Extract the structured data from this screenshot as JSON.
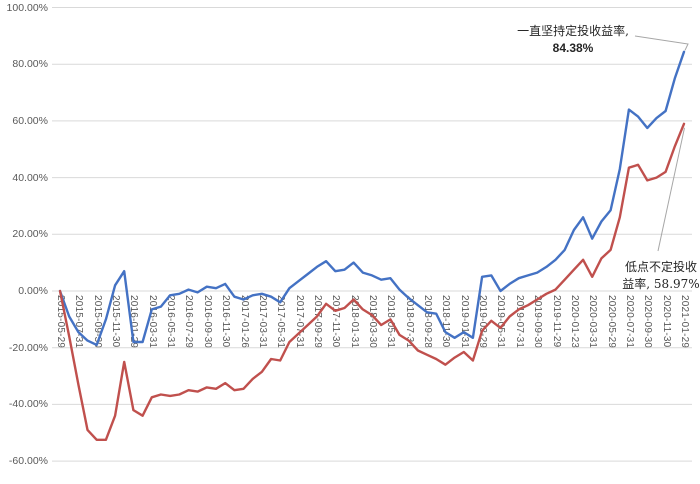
{
  "chart_data": {
    "type": "line",
    "title": "",
    "grid": "horizontal-only",
    "background": "#ffffff",
    "gridline_color": "#d9d9d9",
    "tick_label_color": "#595959",
    "ylim": [
      -60,
      100
    ],
    "y_tick_step": 20,
    "y_tick_labels": [
      "100.00%",
      "80.00%",
      "60.00%",
      "40.00%",
      "20.00%",
      "0.00%",
      "-20.00%",
      "-40.00%",
      "-60.00%"
    ],
    "y_tick_values": [
      100,
      80,
      60,
      40,
      20,
      0,
      -20,
      -40,
      -60
    ],
    "x_label_every_n_points": 2,
    "x_labels": [
      "2015-05-29",
      "2015-07-31",
      "2015-09-30",
      "2015-11-30",
      "2016-01-29",
      "2016-03-31",
      "2016-05-31",
      "2016-07-29",
      "2016-09-30",
      "2016-11-30",
      "2017-01-26",
      "2017-03-31",
      "2017-05-31",
      "2017-07-31",
      "2017-09-29",
      "2017-11-30",
      "2018-01-31",
      "2018-03-30",
      "2018-05-31",
      "2018-07-31",
      "2018-09-28",
      "2018-11-30",
      "2019-01-31",
      "2019-03-29",
      "2019-05-31",
      "2019-07-31",
      "2019-09-30",
      "2019-11-29",
      "2020-01-23",
      "2020-03-31",
      "2020-05-29",
      "2020-07-31",
      "2020-09-30",
      "2020-11-30",
      "2021-01-29"
    ],
    "series": [
      {
        "name": "一直坚持定投收益率",
        "color": "#4472c4",
        "final_value_pct": 84.38,
        "values": [
          0,
          -9,
          -14.5,
          -17.5,
          -19,
          -10,
          2,
          7,
          -18,
          -18,
          -6.5,
          -5.5,
          -1.5,
          -1,
          0.5,
          -0.5,
          1.5,
          1,
          2.5,
          -2,
          -3,
          -1.5,
          -1,
          -2,
          -4,
          1,
          3.5,
          6,
          8.5,
          10.5,
          7,
          7.5,
          10,
          6.5,
          5.5,
          4,
          4.5,
          0.5,
          -2.5,
          -5,
          -7.5,
          -8,
          -14.5,
          -16.5,
          -14.5,
          -16.5,
          5,
          5.5,
          0,
          2.5,
          4.5,
          5.5,
          6.5,
          8.5,
          11,
          14.5,
          21.5,
          26,
          18.5,
          24.5,
          28.5,
          43,
          64,
          61.5,
          57.5,
          61,
          63.5,
          75,
          84.38
        ]
      },
      {
        "name": "低点不定投收益率",
        "color": "#c0504d",
        "final_value_pct": 58.97,
        "values": [
          0,
          -16,
          -33,
          -49,
          -52.5,
          -52.5,
          -44,
          -25,
          -42,
          -44,
          -37.5,
          -36.5,
          -37,
          -36.5,
          -35,
          -35.5,
          -34,
          -34.5,
          -32.5,
          -35,
          -34.5,
          -31,
          -28.5,
          -24,
          -24.5,
          -18,
          -15,
          -12,
          -9,
          -4.5,
          -7,
          -6,
          -3,
          -6.5,
          -8.5,
          -12,
          -10,
          -15.5,
          -17.5,
          -21,
          -22.5,
          -24,
          -26,
          -23.5,
          -21.5,
          -24.5,
          -14,
          -10.5,
          -13,
          -9,
          -6.5,
          -5,
          -3,
          -1,
          0.5,
          4,
          7.5,
          11,
          5,
          11.5,
          14.5,
          26,
          43.5,
          44.5,
          39,
          40,
          42,
          51,
          58.97
        ]
      }
    ],
    "annotations": [
      {
        "series": 0,
        "lines": [
          "一直坚持定投收益率,",
          "84.38%"
        ],
        "leader_color": "#a6a6a6"
      },
      {
        "series": 1,
        "lines": [
          "低点不定投收",
          "益率, 58.97%"
        ],
        "leader_color": "#a6a6a6"
      }
    ]
  }
}
